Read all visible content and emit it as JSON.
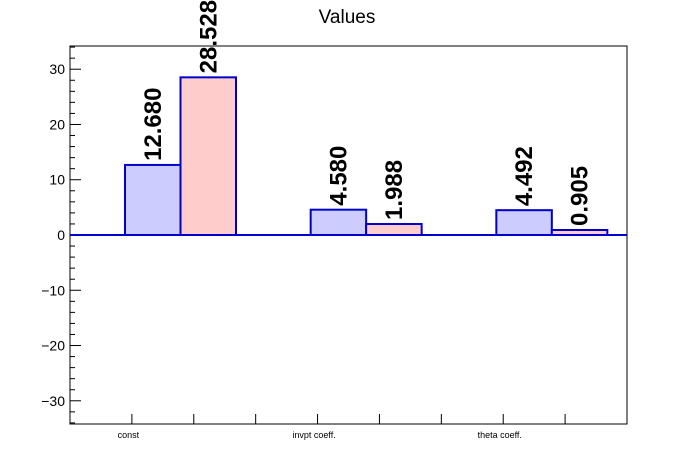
{
  "chart_data": {
    "type": "bar",
    "title": "Values",
    "categories": [
      "const",
      "invpt coeff.",
      "theta coeff."
    ],
    "series": [
      {
        "values": [
          12.68,
          4.58,
          4.492
        ],
        "labels": [
          "12.680",
          "4.580",
          "4.492"
        ],
        "color": "#ccccff"
      },
      {
        "values": [
          28.528,
          1.988,
          0.905
        ],
        "labels": [
          "28.528",
          "1.988",
          "0.905"
        ],
        "color": "#ffcccc"
      }
    ],
    "bar_edge_color": "#0000cc",
    "ylim": [
      -34.2,
      34.2
    ],
    "yticks": [
      -30,
      -20,
      -10,
      0,
      10,
      20,
      30
    ],
    "ytick_labels": [
      "−30",
      "−20",
      "−10",
      "0",
      "10",
      "20",
      "30"
    ],
    "xlabel": "",
    "ylabel": "",
    "grid": false,
    "legend": false
  }
}
